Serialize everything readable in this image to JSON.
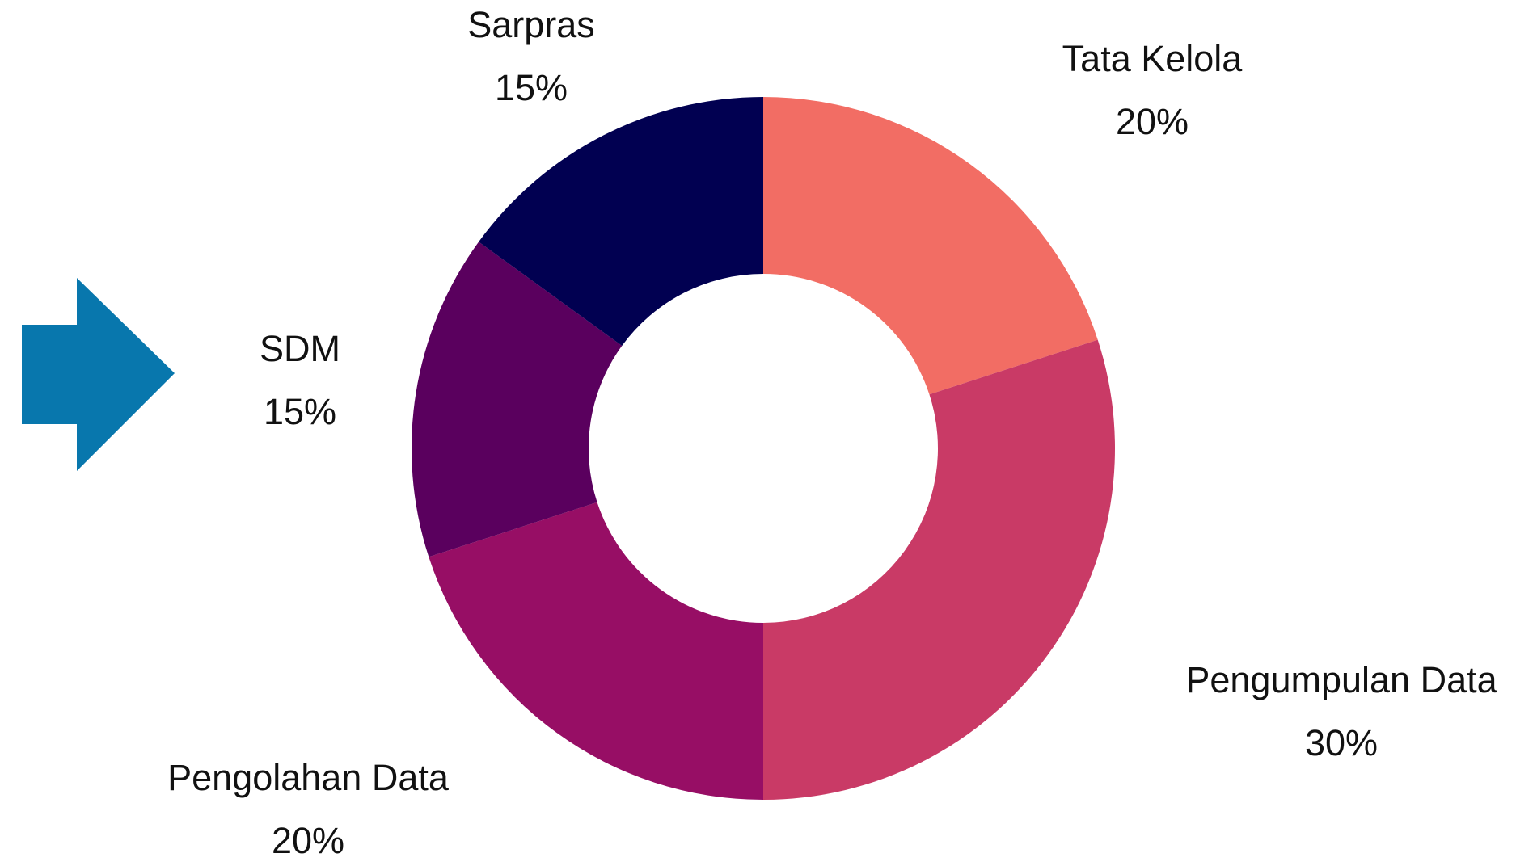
{
  "chart_data": {
    "type": "donut",
    "categories": [
      "Tata Kelola",
      "Pengumpulan Data",
      "Pengolahan Data",
      "SDM",
      "Sarpras"
    ],
    "values": [
      20,
      30,
      20,
      15,
      15
    ],
    "value_labels": [
      "20%",
      "30%",
      "20%",
      "15%",
      "15%"
    ],
    "colors": [
      "#f26d64",
      "#c93a66",
      "#970e65",
      "#5a005e",
      "#010051"
    ]
  }
}
